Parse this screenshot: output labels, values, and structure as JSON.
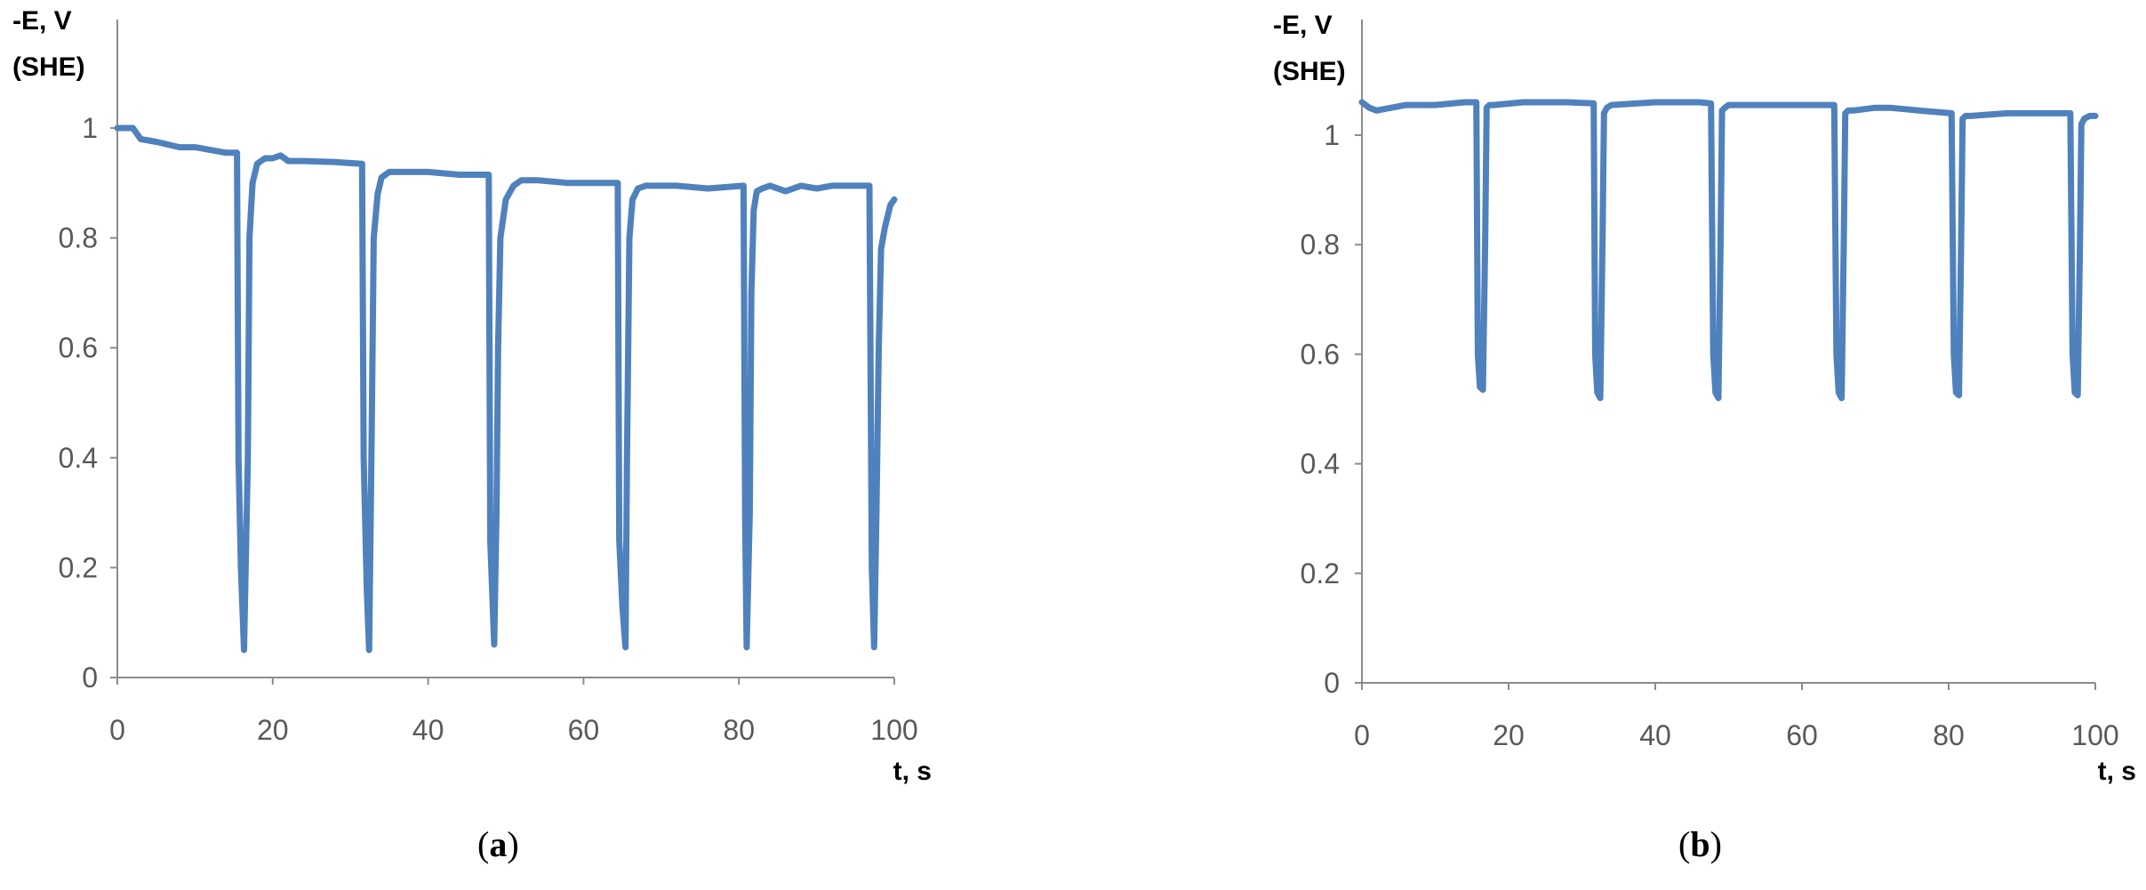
{
  "chart_data": [
    {
      "type": "line",
      "panel_label": "a",
      "ylabel": "-E, V",
      "ylabel_sub": "(SHE)",
      "xlabel": "t, s",
      "xlim": [
        0,
        100
      ],
      "ylim": [
        0,
        1.2
      ],
      "xticks": [
        "0",
        "20",
        "40",
        "60",
        "80",
        "100"
      ],
      "yticks": [
        "0",
        "0.2",
        "0.4",
        "0.6",
        "0.8",
        "1"
      ],
      "grid": false,
      "line_color": "#4F81BD",
      "series": [
        {
          "x": [
            0,
            2,
            3,
            5,
            8,
            10,
            12,
            14,
            15.4,
            15.6,
            15.9,
            16.3,
            16.8,
            17.0,
            17.4,
            18,
            19,
            20,
            21,
            22,
            24,
            28,
            31.5,
            31.7,
            32.1,
            32.4,
            32.7,
            33.0,
            33.5,
            34,
            35,
            37,
            40,
            44,
            47.8,
            48.0,
            48.5,
            48.8,
            49.0,
            49.3,
            50,
            51,
            52,
            54,
            58,
            62,
            64.4,
            64.6,
            65.0,
            65.4,
            65.6,
            65.9,
            66.3,
            67,
            68,
            72,
            76,
            80.6,
            80.8,
            81.0,
            81.4,
            81.6,
            81.9,
            82.3,
            83,
            84,
            86,
            88,
            90,
            92,
            94,
            96.8,
            97.1,
            97.4,
            97.7,
            98.0,
            98.3,
            98.8,
            99.5,
            100
          ],
          "y": [
            1.0,
            1.0,
            0.98,
            0.975,
            0.965,
            0.965,
            0.96,
            0.955,
            0.955,
            0.4,
            0.2,
            0.05,
            0.4,
            0.8,
            0.9,
            0.935,
            0.945,
            0.945,
            0.95,
            0.94,
            0.94,
            0.938,
            0.935,
            0.4,
            0.16,
            0.05,
            0.4,
            0.8,
            0.88,
            0.91,
            0.92,
            0.92,
            0.92,
            0.915,
            0.915,
            0.25,
            0.06,
            0.3,
            0.6,
            0.8,
            0.87,
            0.895,
            0.905,
            0.905,
            0.9,
            0.9,
            0.9,
            0.25,
            0.13,
            0.055,
            0.4,
            0.8,
            0.87,
            0.89,
            0.895,
            0.895,
            0.89,
            0.895,
            0.29,
            0.055,
            0.3,
            0.7,
            0.85,
            0.885,
            0.89,
            0.895,
            0.885,
            0.895,
            0.89,
            0.895,
            0.895,
            0.895,
            0.2,
            0.055,
            0.3,
            0.6,
            0.78,
            0.82,
            0.86,
            0.87
          ]
        }
      ]
    },
    {
      "type": "line",
      "panel_label": "b",
      "ylabel": "-E, V",
      "ylabel_sub": "(SHE)",
      "xlabel": "t, s",
      "xlim": [
        0,
        100
      ],
      "ylim": [
        0,
        1.2
      ],
      "xticks": [
        "0",
        "20",
        "40",
        "60",
        "80",
        "100"
      ],
      "yticks": [
        "0",
        "0.2",
        "0.4",
        "0.6",
        "0.8",
        "1"
      ],
      "grid": false,
      "line_color": "#4F81BD",
      "series": [
        {
          "x": [
            0,
            1,
            2,
            4,
            6,
            10,
            14,
            15.6,
            15.8,
            16.1,
            16.5,
            16.8,
            17.0,
            17.4,
            18,
            22,
            28,
            31.6,
            31.8,
            32.1,
            32.5,
            32.8,
            33.0,
            33.4,
            34,
            40,
            46,
            47.6,
            47.9,
            48.2,
            48.6,
            48.9,
            49.1,
            49.5,
            50,
            56,
            62,
            64.4,
            64.7,
            65.0,
            65.4,
            65.7,
            65.9,
            66.3,
            67,
            70,
            72,
            76,
            80.4,
            80.7,
            81.0,
            81.4,
            81.7,
            81.9,
            82.3,
            83,
            88,
            92,
            96.6,
            96.9,
            97.2,
            97.6,
            97.9,
            98.1,
            98.5,
            99.2,
            100
          ],
          "y": [
            1.06,
            1.05,
            1.045,
            1.05,
            1.055,
            1.055,
            1.06,
            1.06,
            0.6,
            0.54,
            0.535,
            0.8,
            1.05,
            1.055,
            1.055,
            1.06,
            1.06,
            1.058,
            0.6,
            0.53,
            0.52,
            0.8,
            1.04,
            1.05,
            1.055,
            1.06,
            1.06,
            1.058,
            0.6,
            0.53,
            0.52,
            0.8,
            1.045,
            1.05,
            1.055,
            1.055,
            1.055,
            1.055,
            0.6,
            0.53,
            0.52,
            0.8,
            1.04,
            1.045,
            1.045,
            1.05,
            1.05,
            1.045,
            1.04,
            0.6,
            0.53,
            0.525,
            0.8,
            1.03,
            1.035,
            1.035,
            1.04,
            1.04,
            1.04,
            0.6,
            0.53,
            0.525,
            0.8,
            1.02,
            1.03,
            1.035,
            1.035
          ]
        }
      ]
    }
  ]
}
